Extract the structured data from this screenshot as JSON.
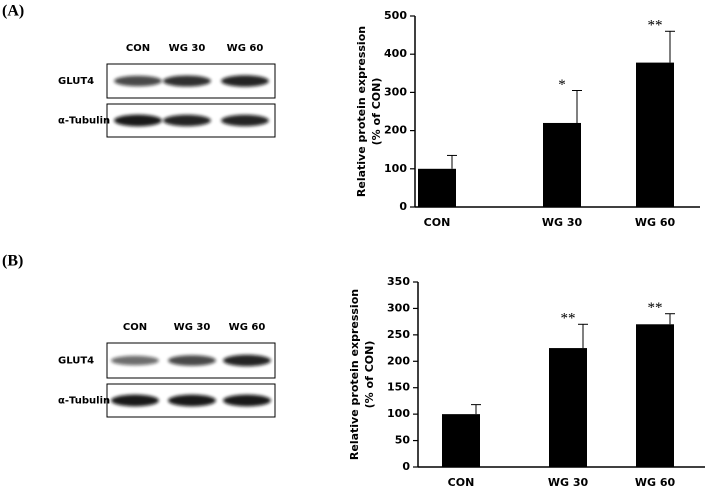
{
  "panel_labels": [
    "(A)",
    "(B)"
  ],
  "blots": [
    {
      "lanes": [
        "CON",
        "WG 30",
        "WG 60"
      ],
      "rows": [
        "GLUT4",
        "α-Tubulin"
      ]
    },
    {
      "lanes": [
        "CON",
        "WG 30",
        "WG 60"
      ],
      "rows": [
        "GLUT4",
        "α-Tubulin"
      ]
    }
  ],
  "chart_data": [
    {
      "type": "bar",
      "categories": [
        "CON",
        "WG 30",
        "WG 60"
      ],
      "values": [
        100,
        220,
        378
      ],
      "errors": [
        35,
        85,
        82
      ],
      "annotations": [
        null,
        "*",
        "**"
      ],
      "ylabel": [
        "Relative protein expression",
        "(% of CON)"
      ],
      "color": "#000000",
      "ylim": [
        0,
        500
      ],
      "yticks": [
        0,
        100,
        200,
        300,
        400,
        500
      ]
    },
    {
      "type": "bar",
      "categories": [
        "CON",
        "WG 30",
        "WG 60"
      ],
      "values": [
        100,
        225,
        270
      ],
      "errors": [
        18,
        45,
        20
      ],
      "annotations": [
        null,
        "**",
        "**"
      ],
      "ylabel": [
        "Relative protein expression",
        "(% of CON)"
      ],
      "color": "#000000",
      "ylim": [
        0,
        350
      ],
      "yticks": [
        0,
        50,
        100,
        150,
        200,
        250,
        300,
        350
      ]
    }
  ]
}
